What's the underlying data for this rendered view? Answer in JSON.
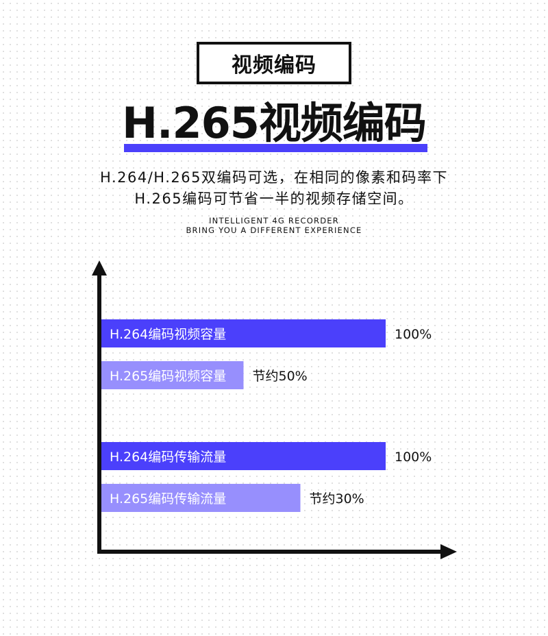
{
  "header": {
    "tag": "视频编码",
    "title": "H.265视频编码",
    "desc_line1": "H.264/H.265双编码可选，在相同的像素和码率下",
    "desc_line2": "H.265编码可节省一半的视频存储空间。",
    "en_line1": "INTELLIGENT 4G RECORDER",
    "en_line2": "BRING YOU A DIFFERENT EXPERIENCE"
  },
  "chart_data": {
    "type": "bar",
    "orientation": "horizontal",
    "categories": [
      "H.264编码视频容量",
      "H.265编码视频容量",
      "H.264编码传输流量",
      "H.265编码传输流量"
    ],
    "values": [
      100,
      50,
      100,
      70
    ],
    "data_labels": [
      "100%",
      "节约50%",
      "100%",
      "节约30%"
    ],
    "colors": [
      "#4b40fb",
      "#978ffd",
      "#4b40fb",
      "#978ffd"
    ],
    "xlim": [
      0,
      100
    ],
    "grid": false,
    "axis_color": "#111111"
  }
}
